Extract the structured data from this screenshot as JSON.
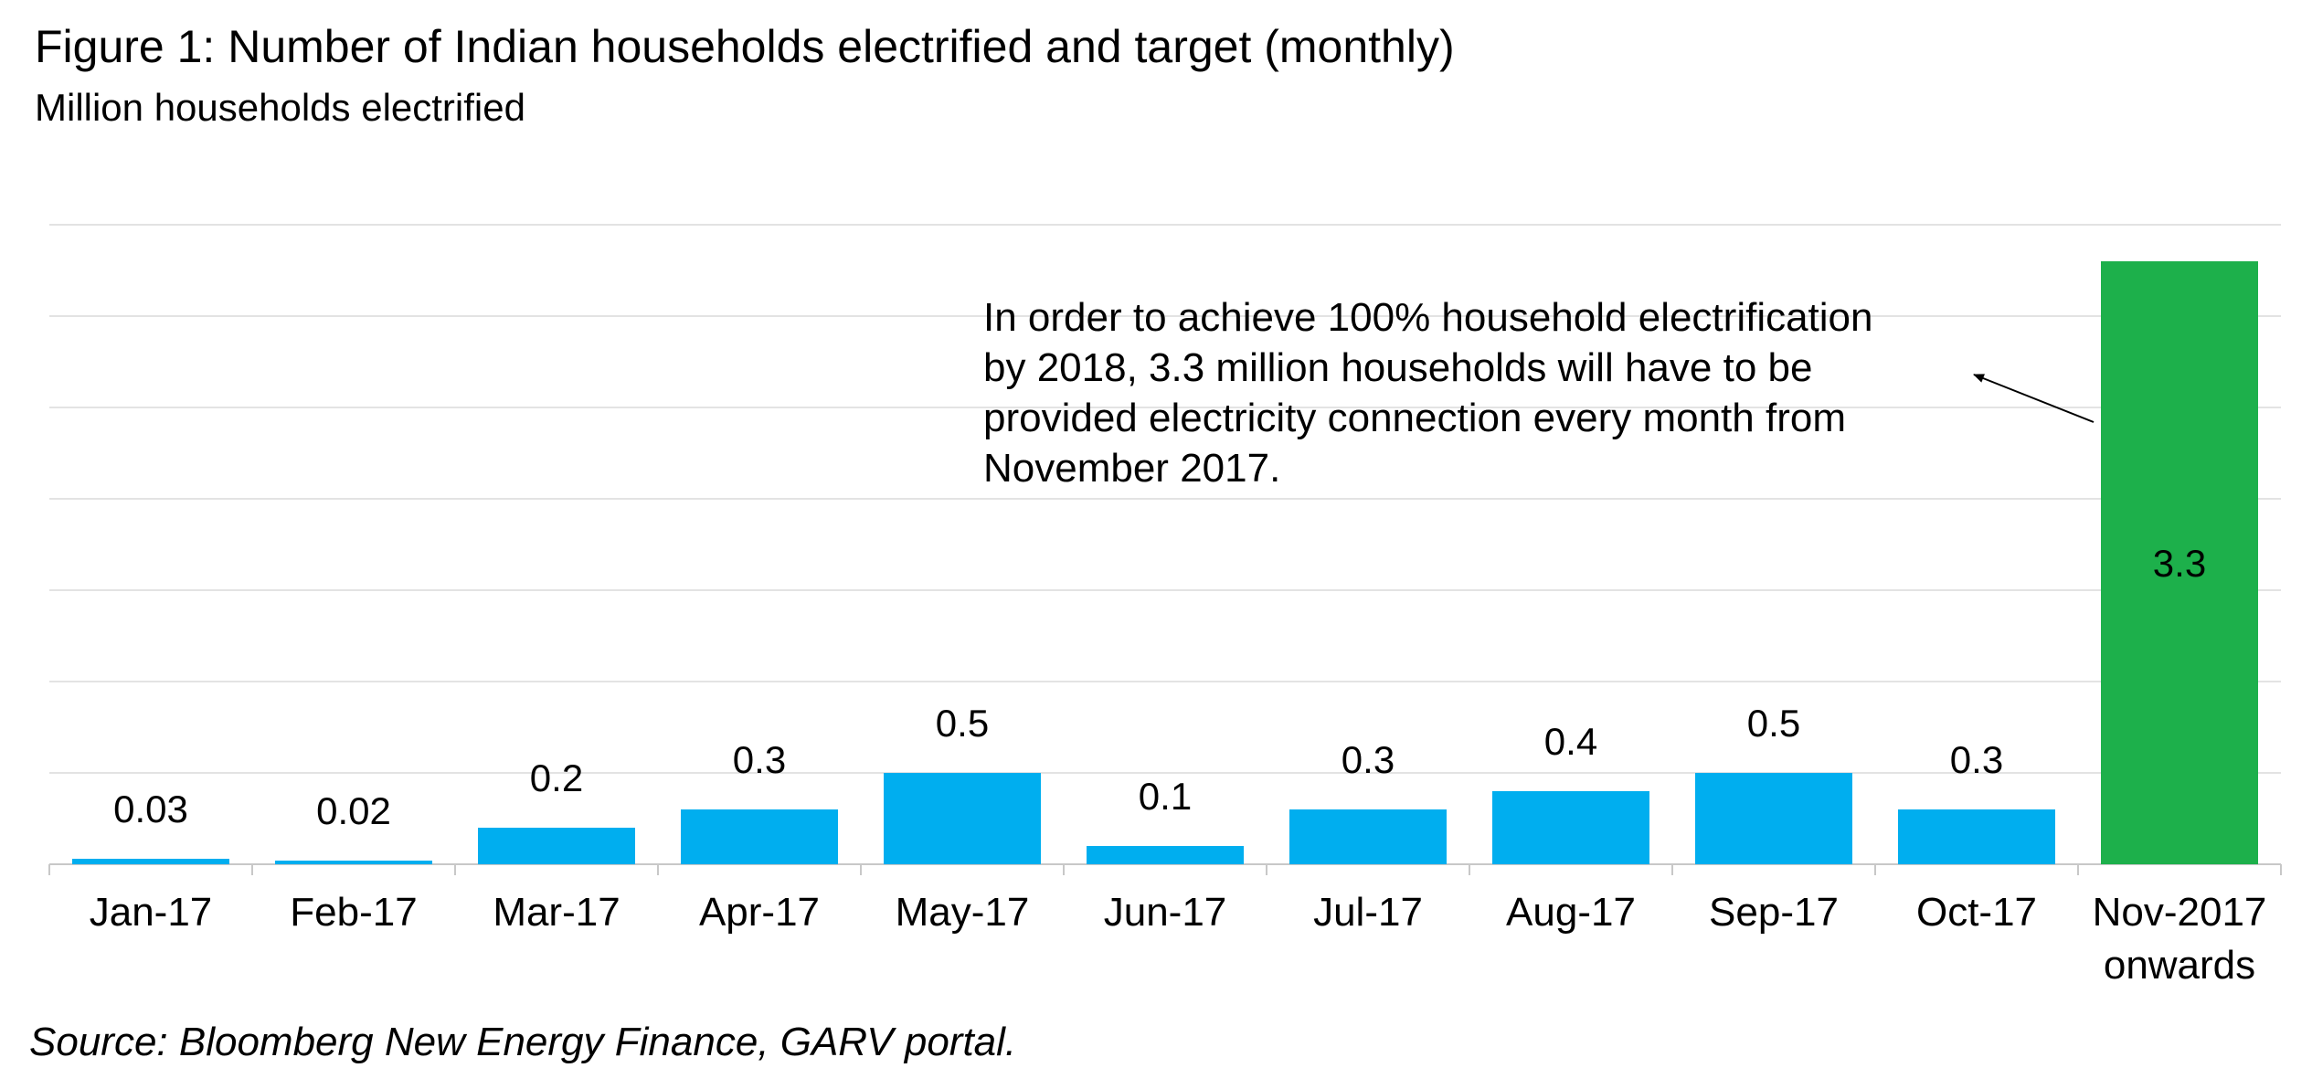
{
  "chart_data": {
    "type": "bar",
    "title": "Figure 1: Number of Indian households electrified and target (monthly)",
    "subtitle": "Million households electrified",
    "xlabel": "",
    "ylabel": "",
    "categories": [
      "Jan-17",
      "Feb-17",
      "Mar-17",
      "Apr-17",
      "May-17",
      "Jun-17",
      "Jul-17",
      "Aug-17",
      "Sep-17",
      "Oct-17",
      "Nov-2017 onwards"
    ],
    "values": [
      0.03,
      0.02,
      0.2,
      0.3,
      0.5,
      0.1,
      0.3,
      0.4,
      0.5,
      0.3,
      3.3
    ],
    "value_labels": [
      "0.03",
      "0.02",
      "0.2",
      "0.3",
      "0.5",
      "0.1",
      "0.3",
      "0.4",
      "0.5",
      "0.3",
      "3.3"
    ],
    "bar_colors": [
      "#00AEEF",
      "#00AEEF",
      "#00AEEF",
      "#00AEEF",
      "#00AEEF",
      "#00AEEF",
      "#00AEEF",
      "#00AEEF",
      "#00AEEF",
      "#00AEEF",
      "#1DB04B"
    ],
    "ylim": [
      0,
      3.5
    ],
    "gridlines": true,
    "y_tick_labels_shown": false,
    "annotation": {
      "lines": [
        "In order to achieve 100% household electrification",
        "by 2018, 3.3 million households will have to be",
        "provided electricity connection every month from",
        "November 2017."
      ],
      "target_category": "Nov-2017 onwards"
    },
    "source": "Source: Bloomberg New Energy Finance, GARV portal."
  }
}
